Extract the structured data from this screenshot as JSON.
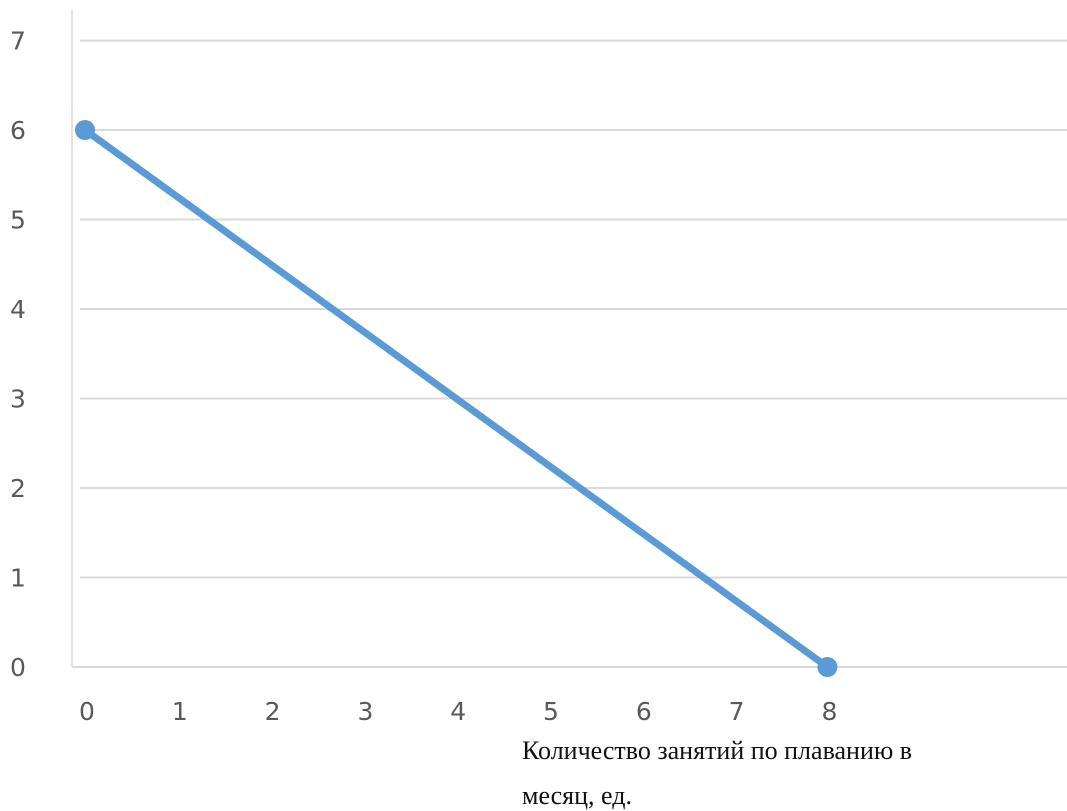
{
  "chart_data": {
    "type": "line",
    "title": "",
    "xlabel": "Количество занятий по плаванию в месяц, ед.",
    "xlabel_lines": [
      "Количество занятий по плаванию в",
      "месяц, ед."
    ],
    "ylabel": "",
    "x_ticks": [
      0,
      1,
      2,
      3,
      4,
      5,
      6,
      7,
      8
    ],
    "y_ticks": [
      0,
      1,
      2,
      3,
      4,
      5,
      6,
      7
    ],
    "xlim": [
      0,
      8
    ],
    "ylim": [
      0,
      7
    ],
    "grid": "horizontal",
    "legend": "none",
    "series": [
      {
        "x": [
          0,
          8
        ],
        "y": [
          6,
          0
        ],
        "color": "#5B9BD5",
        "markers": true
      }
    ]
  }
}
